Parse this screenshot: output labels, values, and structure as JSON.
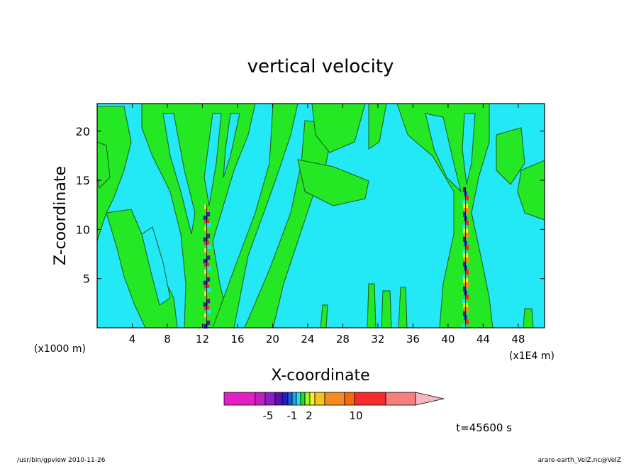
{
  "chart_data": {
    "type": "heatmap",
    "title": "vertical velocity",
    "xlabel": "X-coordinate",
    "ylabel": "Z-coordinate",
    "x_unit": "(x1E4 m)",
    "y_unit": "(x1000 m)",
    "x_ticks": [
      4,
      8,
      12,
      16,
      20,
      24,
      28,
      32,
      36,
      40,
      44,
      48
    ],
    "y_ticks": [
      5,
      10,
      15,
      20
    ],
    "xlim": [
      0,
      51
    ],
    "ylim": [
      0,
      22.8
    ],
    "colorbar": {
      "tick_labels": [
        "-5",
        "-1",
        "2",
        "10"
      ],
      "colors": [
        "#e21fc2",
        "#c21fc2",
        "#8a1fc2",
        "#5a12a8",
        "#1f1fc2",
        "#1f5ae2",
        "#1fa0f5",
        "#1fe2e2",
        "#1fe21f",
        "#a0f51f",
        "#f5f51f",
        "#f5c21f",
        "#f58a1f",
        "#f56a0f",
        "#f52a2a",
        "#f57f7f",
        "#f5b8c2"
      ],
      "extends": "right"
    },
    "time_label": "t=45600 s",
    "background_color": "#23e8f5",
    "positive_color": "#23e823",
    "strong_updraft_columns_x": [
      12.5,
      42
    ]
  },
  "footer": {
    "left": "/usr/bin/gpview  2010-11-26",
    "right": "arare-earth_VelZ.nc@VelZ"
  }
}
